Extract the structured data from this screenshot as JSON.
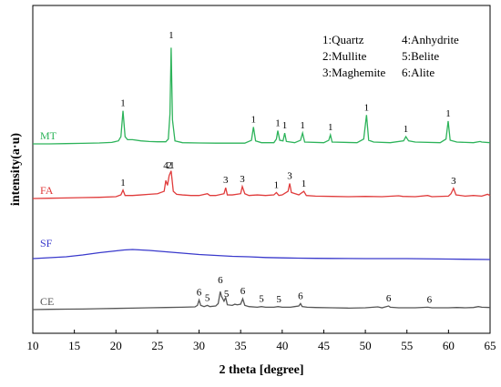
{
  "chart_data": {
    "type": "line",
    "title": "",
    "xlabel": "2 theta [degree]",
    "ylabel": "intensity(a·u)",
    "xlim": [
      10,
      65
    ],
    "xticks": [
      "10",
      "15",
      "20",
      "25",
      "30",
      "35",
      "40",
      "45",
      "50",
      "55",
      "60",
      "65"
    ],
    "yticks_shown": false,
    "grid": false,
    "legend": {
      "placement": "top-right",
      "entries": [
        "1:Quartz",
        "4:Anhydrite",
        "2:Mullite",
        "5:Belite",
        "3:Maghemite",
        "6:Alite"
      ]
    },
    "series": [
      {
        "name": "MT",
        "color": "#2db35a",
        "baseline": 0.0,
        "points": [
          [
            10,
            0.0
          ],
          [
            12,
            0.0
          ],
          [
            14,
            0.005
          ],
          [
            16,
            0.01
          ],
          [
            18,
            0.015
          ],
          [
            19.5,
            0.025
          ],
          [
            20.3,
            0.05
          ],
          [
            20.6,
            0.12
          ],
          [
            20.85,
            0.55
          ],
          [
            21.1,
            0.12
          ],
          [
            21.4,
            0.07
          ],
          [
            22,
            0.07
          ],
          [
            23,
            0.05
          ],
          [
            24,
            0.04
          ],
          [
            25,
            0.035
          ],
          [
            26,
            0.035
          ],
          [
            26.3,
            0.08
          ],
          [
            26.5,
            0.5
          ],
          [
            26.64,
            1.6
          ],
          [
            26.8,
            0.4
          ],
          [
            27.1,
            0.05
          ],
          [
            28,
            0.02
          ],
          [
            30,
            0.015
          ],
          [
            32,
            0.012
          ],
          [
            34,
            0.012
          ],
          [
            35.5,
            0.012
          ],
          [
            36.3,
            0.06
          ],
          [
            36.54,
            0.28
          ],
          [
            36.8,
            0.05
          ],
          [
            37.5,
            0.02
          ],
          [
            39,
            0.02
          ],
          [
            39.3,
            0.08
          ],
          [
            39.47,
            0.22
          ],
          [
            39.7,
            0.06
          ],
          [
            40.1,
            0.05
          ],
          [
            40.3,
            0.18
          ],
          [
            40.5,
            0.04
          ],
          [
            41.5,
            0.02
          ],
          [
            42.2,
            0.06
          ],
          [
            42.45,
            0.18
          ],
          [
            42.7,
            0.03
          ],
          [
            45,
            0.02
          ],
          [
            45.6,
            0.06
          ],
          [
            45.8,
            0.15
          ],
          [
            46,
            0.03
          ],
          [
            49,
            0.02
          ],
          [
            49.8,
            0.08
          ],
          [
            50.14,
            0.48
          ],
          [
            50.4,
            0.06
          ],
          [
            51,
            0.03
          ],
          [
            53,
            0.02
          ],
          [
            54.6,
            0.05
          ],
          [
            54.87,
            0.12
          ],
          [
            55.2,
            0.05
          ],
          [
            56,
            0.03
          ],
          [
            59,
            0.02
          ],
          [
            59.7,
            0.08
          ],
          [
            59.96,
            0.38
          ],
          [
            60.2,
            0.06
          ],
          [
            61,
            0.03
          ],
          [
            63,
            0.02
          ],
          [
            63.8,
            0.04
          ],
          [
            64,
            0.03
          ],
          [
            65,
            0.02
          ]
        ],
        "peak_labels": [
          [
            "1",
            26.64
          ],
          [
            "1",
            20.85
          ],
          [
            "1",
            36.54
          ],
          [
            "1",
            39.47
          ],
          [
            "1",
            40.3
          ],
          [
            "1",
            42.45
          ],
          [
            "1",
            45.8
          ],
          [
            "1",
            50.14
          ],
          [
            "1",
            54.87
          ],
          [
            "1",
            59.96
          ]
        ]
      },
      {
        "name": "FA",
        "color": "#e03b3b",
        "baseline": 0.0,
        "points": [
          [
            10,
            0.0
          ],
          [
            12,
            0.005
          ],
          [
            14,
            0.01
          ],
          [
            16,
            0.015
          ],
          [
            18,
            0.02
          ],
          [
            20,
            0.03
          ],
          [
            20.6,
            0.06
          ],
          [
            20.85,
            0.14
          ],
          [
            21.1,
            0.05
          ],
          [
            22,
            0.05
          ],
          [
            23,
            0.06
          ],
          [
            24,
            0.07
          ],
          [
            25,
            0.08
          ],
          [
            25.8,
            0.12
          ],
          [
            26.0,
            0.3
          ],
          [
            26.2,
            0.22
          ],
          [
            26.4,
            0.38
          ],
          [
            26.64,
            0.46
          ],
          [
            26.9,
            0.12
          ],
          [
            27.3,
            0.07
          ],
          [
            28,
            0.06
          ],
          [
            29,
            0.05
          ],
          [
            30,
            0.05
          ],
          [
            31,
            0.08
          ],
          [
            31.3,
            0.05
          ],
          [
            32,
            0.05
          ],
          [
            33,
            0.08
          ],
          [
            33.2,
            0.18
          ],
          [
            33.4,
            0.06
          ],
          [
            34,
            0.06
          ],
          [
            35,
            0.08
          ],
          [
            35.2,
            0.2
          ],
          [
            35.5,
            0.08
          ],
          [
            36,
            0.05
          ],
          [
            37,
            0.06
          ],
          [
            38,
            0.05
          ],
          [
            39,
            0.06
          ],
          [
            39.3,
            0.1
          ],
          [
            39.6,
            0.05
          ],
          [
            40,
            0.06
          ],
          [
            40.7,
            0.12
          ],
          [
            40.9,
            0.25
          ],
          [
            41.1,
            0.1
          ],
          [
            42,
            0.06
          ],
          [
            42.6,
            0.12
          ],
          [
            42.9,
            0.05
          ],
          [
            44,
            0.04
          ],
          [
            46,
            0.035
          ],
          [
            48,
            0.03
          ],
          [
            50,
            0.035
          ],
          [
            52,
            0.03
          ],
          [
            54,
            0.045
          ],
          [
            54.5,
            0.035
          ],
          [
            56,
            0.03
          ],
          [
            57.5,
            0.05
          ],
          [
            58,
            0.03
          ],
          [
            60,
            0.04
          ],
          [
            60.3,
            0.08
          ],
          [
            60.6,
            0.17
          ],
          [
            60.9,
            0.06
          ],
          [
            62,
            0.04
          ],
          [
            63,
            0.05
          ],
          [
            64,
            0.04
          ],
          [
            64.7,
            0.07
          ],
          [
            65,
            0.05
          ]
        ],
        "peak_labels": [
          [
            "1",
            20.85
          ],
          [
            "4",
            26.0
          ],
          [
            "2",
            26.45
          ],
          [
            "1",
            26.75
          ],
          [
            "3",
            33.2
          ],
          [
            "3",
            35.2
          ],
          [
            "1",
            39.3
          ],
          [
            "3",
            40.9
          ],
          [
            "1",
            42.6
          ],
          [
            "3",
            60.6
          ]
        ]
      },
      {
        "name": "SF",
        "color": "#3a3acc",
        "baseline": 0.0,
        "points": [
          [
            10,
            0.0
          ],
          [
            12,
            0.01
          ],
          [
            14,
            0.02
          ],
          [
            16,
            0.04
          ],
          [
            18,
            0.065
          ],
          [
            20,
            0.085
          ],
          [
            21,
            0.095
          ],
          [
            22,
            0.1
          ],
          [
            23,
            0.095
          ],
          [
            24,
            0.09
          ],
          [
            26,
            0.075
          ],
          [
            28,
            0.06
          ],
          [
            30,
            0.045
          ],
          [
            32,
            0.035
          ],
          [
            34,
            0.025
          ],
          [
            36,
            0.02
          ],
          [
            38,
            0.012
          ],
          [
            40,
            0.008
          ],
          [
            42,
            0.005
          ],
          [
            44,
            0.003
          ],
          [
            46,
            0.002
          ],
          [
            50,
            0.0
          ],
          [
            55,
            0.0
          ],
          [
            60,
            -0.005
          ],
          [
            65,
            -0.01
          ]
        ],
        "peak_labels": []
      },
      {
        "name": "CE",
        "color": "#555555",
        "baseline": 0.0,
        "points": [
          [
            10,
            0.0
          ],
          [
            12,
            0.005
          ],
          [
            14,
            0.008
          ],
          [
            16,
            0.01
          ],
          [
            18,
            0.015
          ],
          [
            20,
            0.02
          ],
          [
            22,
            0.025
          ],
          [
            24,
            0.03
          ],
          [
            26,
            0.035
          ],
          [
            28,
            0.04
          ],
          [
            29.5,
            0.045
          ],
          [
            29.8,
            0.07
          ],
          [
            30,
            0.16
          ],
          [
            30.2,
            0.07
          ],
          [
            30.6,
            0.05
          ],
          [
            31,
            0.07
          ],
          [
            31.3,
            0.05
          ],
          [
            32,
            0.06
          ],
          [
            32.3,
            0.1
          ],
          [
            32.55,
            0.3
          ],
          [
            32.7,
            0.22
          ],
          [
            32.85,
            0.18
          ],
          [
            33,
            0.14
          ],
          [
            33.2,
            0.2
          ],
          [
            33.4,
            0.08
          ],
          [
            34,
            0.07
          ],
          [
            34.3,
            0.09
          ],
          [
            34.6,
            0.08
          ],
          [
            35,
            0.09
          ],
          [
            35.25,
            0.18
          ],
          [
            35.5,
            0.07
          ],
          [
            36,
            0.05
          ],
          [
            37,
            0.04
          ],
          [
            37.5,
            0.05
          ],
          [
            38,
            0.04
          ],
          [
            39,
            0.04
          ],
          [
            39.5,
            0.05
          ],
          [
            40,
            0.04
          ],
          [
            41,
            0.04
          ],
          [
            41.5,
            0.05
          ],
          [
            42,
            0.06
          ],
          [
            42.2,
            0.1
          ],
          [
            42.4,
            0.05
          ],
          [
            43,
            0.04
          ],
          [
            44,
            0.035
          ],
          [
            46,
            0.03
          ],
          [
            48,
            0.025
          ],
          [
            50,
            0.03
          ],
          [
            51.5,
            0.045
          ],
          [
            52,
            0.03
          ],
          [
            52.8,
            0.06
          ],
          [
            53,
            0.04
          ],
          [
            54,
            0.03
          ],
          [
            56,
            0.03
          ],
          [
            57.5,
            0.04
          ],
          [
            58,
            0.03
          ],
          [
            60,
            0.03
          ],
          [
            61,
            0.035
          ],
          [
            62,
            0.03
          ],
          [
            63,
            0.035
          ],
          [
            63.6,
            0.05
          ],
          [
            64,
            0.04
          ],
          [
            65,
            0.035
          ]
        ],
        "peak_labels": [
          [
            "6",
            30.0
          ],
          [
            "5",
            31.0
          ],
          [
            "6",
            32.55
          ],
          [
            "5",
            33.3
          ],
          [
            "6",
            35.25
          ],
          [
            "5",
            37.5
          ],
          [
            "5",
            39.6
          ],
          [
            "6",
            42.2
          ],
          [
            "6",
            52.8
          ],
          [
            "6",
            57.7
          ]
        ]
      }
    ]
  }
}
